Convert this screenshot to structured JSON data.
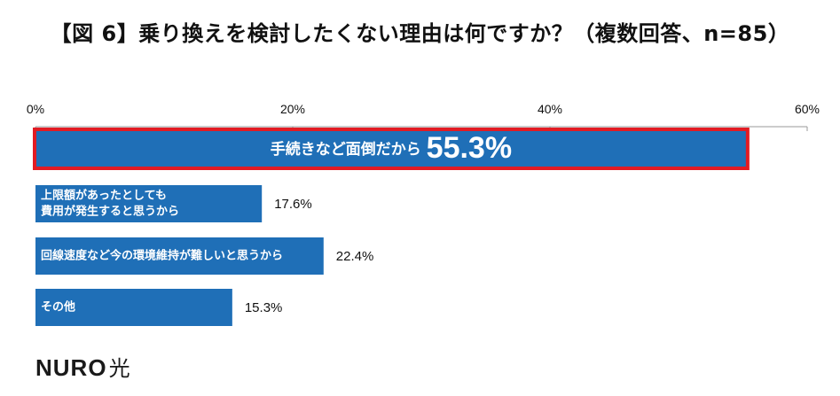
{
  "title": "【図 6】乗り換えを検討したくない理由は何ですか？（複数回答、n=85）",
  "logo": {
    "brand": "NURO",
    "suffix": "光"
  },
  "colors": {
    "bar": "#1f6fb7",
    "highlight_border": "#e21b23",
    "axis": "#999999"
  },
  "chart_data": {
    "type": "bar",
    "orientation": "horizontal",
    "xlim": [
      0,
      60
    ],
    "ticks": [
      "0%",
      "20%",
      "40%",
      "60%"
    ],
    "tick_values": [
      0,
      20,
      40,
      60
    ],
    "categories": [
      "手続きなど面倒だから",
      "上限額があったとしても\n費用が発生すると思うから",
      "回線速度など今の環境維持が難しいと思うから",
      "その他"
    ],
    "values": [
      55.3,
      17.6,
      22.4,
      15.3
    ],
    "value_labels": [
      "55.3%",
      "17.6%",
      "22.4%",
      "15.3%"
    ],
    "highlight_index": 0
  }
}
